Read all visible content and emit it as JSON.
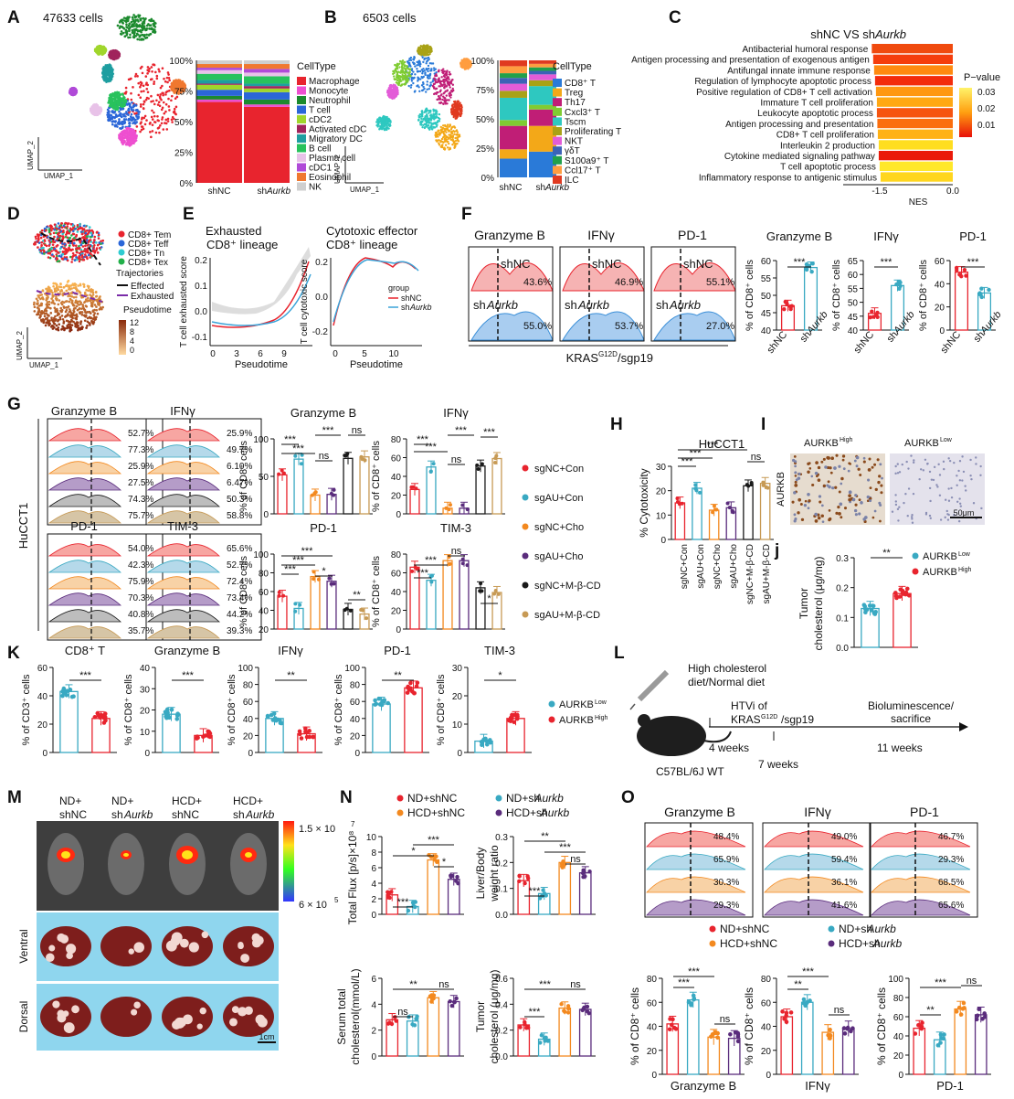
{
  "panels": {
    "A": {
      "letter": "A",
      "cells": "47633 cells",
      "axis_x": "UMAP_1",
      "axis_y": "UMAP_2",
      "ticks": [
        "100%",
        "75%",
        "50%",
        "25%",
        "0%"
      ],
      "x_labels": [
        "shNC",
        "shAurkb"
      ],
      "legend_title": "CellType",
      "legend": [
        "Macrophage",
        "Monocyte",
        "Neutrophil",
        "T cell",
        "cDC2",
        "Activated cDC",
        "Migratory DC",
        "B cell",
        "Plasma cell",
        "cDC1",
        "Eosinophil",
        "NK"
      ],
      "colors": [
        "#e8242e",
        "#ee4fd0",
        "#1c8a2e",
        "#2b66d8",
        "#a0d62c",
        "#a0245c",
        "#1e9ea0",
        "#28c25c",
        "#e8c2e8",
        "#b04ad8",
        "#f07830",
        "#cfcfcf"
      ],
      "shNC": [
        66,
        2,
        3,
        5,
        4,
        1,
        3,
        5,
        3,
        2,
        3,
        3
      ],
      "shAurkb": [
        62,
        2,
        4,
        6,
        3,
        2,
        2,
        6,
        3,
        3,
        4,
        3
      ]
    },
    "B": {
      "letter": "B",
      "cells": "6503 cells",
      "axis_x": "UMAP_1",
      "axis_y": "UMAP_2",
      "ticks": [
        "100%",
        "75%",
        "50%",
        "25%",
        "0%"
      ],
      "x_labels": [
        "shNC",
        "shAurkb"
      ],
      "legend_title": "CellType",
      "legend": [
        "CD8⁺ T",
        "Treg",
        "Th17",
        "Cxcl3⁺ T",
        "Tscm",
        "Proliferating T",
        "NKT",
        "γδT",
        "S100a9⁺ T",
        "Ccl17⁺ T",
        "ILC"
      ],
      "colors": [
        "#2a7ad8",
        "#f3a818",
        "#c01e76",
        "#7fcc32",
        "#2ec8c0",
        "#a9a216",
        "#e35cd8",
        "#3c62b6",
        "#22a04a",
        "#ff9d40",
        "#e03a20"
      ],
      "shNC": [
        16,
        8,
        20,
        5,
        19,
        6,
        6,
        5,
        4,
        6,
        5
      ],
      "shAurkb": [
        22,
        22,
        14,
        4,
        16,
        5,
        5,
        3,
        3,
        3,
        3
      ]
    },
    "C": {
      "letter": "C",
      "title": "shNC VS shAurkb",
      "xlabel": "NES",
      "ticks": [
        "-1.5",
        "0.0"
      ],
      "legend_title": "P−value",
      "legend_ticks": [
        "0.03",
        "0.02",
        "0.01"
      ],
      "pathways": [
        "Antibacterial humoral response",
        "Antigen processing and presentation of exogenous antigen",
        "Antifungal innate immune response",
        "Regulation of lymphocyte apoptotic process",
        "Positive regulation of CD8+ T cell activation",
        "Immature T cell proliferation",
        "Leukocyte apoptotic process",
        "Antigen processing and presentation",
        "CD8+ T cell proliferation",
        "Interleukin 2 production",
        "Cytokine mediated signaling pathway",
        "T cell apoptotic process",
        "Inflammatory response to antigenic stimulus"
      ],
      "nes": [
        -1.75,
        -1.72,
        -1.7,
        -1.68,
        -1.66,
        -1.64,
        -1.64,
        -1.63,
        -1.62,
        -1.6,
        -1.6,
        -1.58,
        -1.56
      ],
      "colors": [
        "#f04a0e",
        "#f53d0c",
        "#ff8a10",
        "#f32c0c",
        "#ff9812",
        "#ffa814",
        "#f65410",
        "#fb6e0e",
        "#ffb216",
        "#ffde20",
        "#ea1a0a",
        "#ffe82a",
        "#ffd61e"
      ]
    },
    "D": {
      "letter": "D",
      "legend": [
        "CD8+ Tem",
        "CD8+ Teff",
        "CD8+ Tn",
        "CD8+ Tex"
      ],
      "legend_colors": [
        "#e8242e",
        "#2a66d8",
        "#2ecbd0",
        "#22b04a"
      ],
      "traj_title": "Trajectories",
      "traj": [
        "Effected",
        "Exhausted"
      ],
      "pseudotime": "Pseudotime",
      "pt_ticks": [
        "12",
        "8",
        "4",
        "0"
      ],
      "axis_x": "UMAP_1",
      "axis_y": "UMAP_2"
    },
    "E": {
      "letter": "E",
      "title1": "Exhausted",
      "title1b": "CD8⁺ lineage",
      "title2": "Cytotoxic effector",
      "title2b": "CD8⁺ lineage",
      "ylabel1": "T cell exhausted score",
      "ylabel2": "T cell cytotoxic score",
      "xlabel": "Pseudotime",
      "xticks1": [
        "0",
        "3",
        "6",
        "9"
      ],
      "yticks1": [
        "0.2",
        "0.1",
        "0.0",
        "-0.1"
      ],
      "xticks2": [
        "0",
        "5",
        "10"
      ],
      "yticks2": [
        "0.2",
        "0.0",
        "-0.2"
      ],
      "group": "group",
      "groups": [
        "shNC",
        "shAurkb"
      ]
    },
    "F": {
      "letter": "F",
      "markers": [
        "Granzyme B",
        "IFNγ",
        "PD-1"
      ],
      "shNC": [
        "43.6%",
        "46.9%",
        "55.1%"
      ],
      "shAurkb": [
        "55.0%",
        "53.7%",
        "27.0%"
      ],
      "labels": [
        "shNC",
        "shAurkb"
      ],
      "xlabel": "KRASG12D/sgp19",
      "bars": [
        {
          "title": "Granzyme B",
          "ylabel": "% of CD8⁺ cells",
          "yticks": [
            "60",
            "55",
            "50",
            "45",
            "40"
          ],
          "values": [
            47,
            58
          ],
          "sig": "***"
        },
        {
          "title": "IFNγ",
          "ylabel": "% of CD8⁺ cells",
          "yticks": [
            "65",
            "60",
            "55",
            "50",
            "45",
            "40"
          ],
          "values": [
            46,
            56
          ],
          "sig": "***"
        },
        {
          "title": "PD-1",
          "ylabel": "% of CD8⁺ cells",
          "yticks": [
            "60",
            "40",
            "20",
            "0"
          ],
          "values": [
            50,
            32
          ],
          "sig": "***"
        }
      ]
    },
    "G": {
      "letter": "G",
      "cell_line": "HuCCT1",
      "hist_titles": [
        "Granzyme B",
        "IFNγ",
        "PD-1",
        "TIM-3"
      ],
      "pcts_top": [
        [
          "52.7%",
          "77.3%",
          "25.9%",
          "27.5%",
          "74.3%",
          "75.7%"
        ],
        [
          "25.9%",
          "49.7%",
          "6.10%",
          "6.47%",
          "50.3%",
          "58.8%"
        ]
      ],
      "pcts_bot": [
        [
          "54.0%",
          "42.3%",
          "75.9%",
          "70.3%",
          "40.8%",
          "35.7%"
        ],
        [
          "65.6%",
          "52.7%",
          "72.4%",
          "73.4%",
          "44.2%",
          "39.3%"
        ]
      ],
      "groups": [
        "sgNC+Con",
        "sgAU+Con",
        "sgNC+Cho",
        "sgAU+Cho",
        "sgNC+M-β-CD",
        "sgAU+M-β-CD"
      ],
      "group_colors": [
        "#e8242e",
        "#39a9c2",
        "#f3891f",
        "#5a2c7c",
        "#1a1a1a",
        "#c79a55"
      ],
      "bars": [
        {
          "title": "Granzyme B",
          "ylabel": "% of CD8⁺ cells",
          "ymax": 100,
          "yticks": [
            "100",
            "50",
            "0"
          ],
          "values": [
            52,
            73,
            25,
            26,
            74,
            76
          ]
        },
        {
          "title": "IFNγ",
          "ylabel": "% of CD8⁺ cells",
          "ymax": 80,
          "yticks": [
            "80",
            "60",
            "40",
            "20",
            "0"
          ],
          "values": [
            26,
            50,
            6,
            6,
            51,
            59
          ]
        },
        {
          "title": "PD-1",
          "ylabel": "% of CD8⁺ cells",
          "ymax": 100,
          "yticks": [
            "100",
            "80",
            "60",
            "40",
            "20"
          ],
          "values": [
            55,
            42,
            76,
            71,
            41,
            36
          ]
        },
        {
          "title": "TIM-3",
          "ylabel": "% of CD8⁺ cells",
          "ymax": 80,
          "yticks": [
            "80",
            "60",
            "40",
            "20",
            "0"
          ],
          "values": [
            66,
            52,
            73,
            73,
            44,
            39
          ]
        }
      ],
      "sig": [
        "***",
        "ns",
        "*",
        "**"
      ]
    },
    "H": {
      "letter": "H",
      "title": "HuCCT1",
      "ylabel": "% Cytotoxicity",
      "yticks": [
        "30",
        "20",
        "10",
        "0"
      ],
      "values": [
        15,
        21,
        12,
        13,
        22,
        23
      ],
      "sig": [
        "***",
        "***",
        "***",
        "ns"
      ]
    },
    "I": {
      "letter": "I",
      "title_high": "AURKBHigh",
      "title_low": "AURKBLow",
      "side": "AURKB",
      "scale": "50μm"
    },
    "J": {
      "letter": "j",
      "ylabel": "Tumor cholesterol (μg/mg)",
      "yticks": [
        "0.3",
        "0.2",
        "0.1",
        "0.0"
      ],
      "values": [
        0.13,
        0.18
      ],
      "sig": "**",
      "legend": [
        "AURKBLow",
        "AURKBHigh"
      ]
    },
    "K": {
      "letter": "K",
      "panels": [
        {
          "title": "CD8⁺ T",
          "ylabel": "% of CD3⁺ cells",
          "yticks": [
            "60",
            "40",
            "20",
            "0"
          ],
          "values": [
            43,
            24
          ],
          "sig": "***"
        },
        {
          "title": "Granzyme B",
          "ylabel": "% of CD8⁺ cells",
          "yticks": [
            "40",
            "30",
            "20",
            "10",
            "0"
          ],
          "values": [
            18,
            8
          ],
          "sig": "***"
        },
        {
          "title": "IFNγ",
          "ylabel": "% of CD8⁺ cells",
          "yticks": [
            "100",
            "80",
            "60",
            "40",
            "20",
            "0"
          ],
          "values": [
            40,
            22
          ],
          "sig": "**"
        },
        {
          "title": "PD-1",
          "ylabel": "% of CD8⁺ cells",
          "yticks": [
            "100",
            "80",
            "60",
            "40",
            "20",
            "0"
          ],
          "values": [
            57,
            76
          ],
          "sig": "**"
        },
        {
          "title": "TIM-3",
          "ylabel": "% of CD8⁺ cells",
          "yticks": [
            "30",
            "20",
            "10",
            "0"
          ],
          "values": [
            4,
            12
          ],
          "sig": "*"
        }
      ],
      "legend": [
        "AURKBLow",
        "AURKBHigh"
      ]
    },
    "L": {
      "letter": "L",
      "diet": "High cholesterol diet/Normal diet",
      "htvi": "HTVi of",
      "krase": "KRASG12D/sgp19",
      "end": "Bioluminescence/ sacrifice",
      "weeks": [
        "4 weeks",
        "7 weeks",
        "11 weeks"
      ],
      "mouse": "C57BL/6J WT"
    },
    "M": {
      "letter": "M",
      "groups": [
        "ND+ shNC",
        "ND+ shAurkb",
        "HCD+ shNC",
        "HCD+ shAurkb"
      ],
      "scale_max": "1.5 × 10",
      "scale_max_exp": "7",
      "scale_min": "6 × 10",
      "scale_min_exp": "5",
      "views": [
        "Ventral",
        "Dorsal"
      ],
      "bar": "1cm"
    },
    "N": {
      "letter": "N",
      "legend": [
        "ND+shNC",
        "ND+shAurkb",
        "HCD+shNC",
        "HCD+shAurkb"
      ],
      "colors": [
        "#e8242e",
        "#39a9c2",
        "#f3891f",
        "#5a2c7c"
      ],
      "bars": [
        {
          "ylabel": "Total Flux [p/s]×10⁸",
          "yticks": [
            "10",
            "8",
            "6",
            "4",
            "2",
            "0"
          ],
          "ymax": 10,
          "values": [
            2.5,
            1.0,
            7.0,
            4.5
          ],
          "sig": [
            "*",
            "***",
            "*",
            "***"
          ]
        },
        {
          "ylabel": "Liver/Body weight ratio",
          "yticks": [
            "0.3",
            "0.2",
            "0.1",
            "0.0"
          ],
          "ymax": 0.3,
          "values": [
            0.13,
            0.08,
            0.2,
            0.16
          ],
          "sig": [
            "**",
            "***",
            "ns",
            "***"
          ]
        },
        {
          "ylabel": "Serum total cholesterol(mmol/L)",
          "yticks": [
            "6",
            "4",
            "2",
            "0"
          ],
          "ymax": 6,
          "values": [
            2.8,
            2.7,
            4.5,
            4.2
          ],
          "sig": [
            "**",
            "ns",
            "ns"
          ]
        },
        {
          "ylabel": "Tumor cholesterol (μg/mg)",
          "yticks": [
            "0.6",
            "0.4",
            "0.2",
            "0.0"
          ],
          "ymax": 0.6,
          "values": [
            0.24,
            0.13,
            0.37,
            0.36
          ],
          "sig": [
            "***",
            "***",
            "ns"
          ]
        }
      ]
    },
    "O": {
      "letter": "O",
      "markers": [
        "Granzyme B",
        "IFNγ",
        "PD-1"
      ],
      "pcts": [
        [
          "48.4%",
          "65.9%",
          "30.3%",
          "29.3%"
        ],
        [
          "49.0%",
          "59.4%",
          "36.1%",
          "41.6%"
        ],
        [
          "46.7%",
          "29.3%",
          "68.5%",
          "65.6%"
        ]
      ],
      "legend": [
        "ND+shNC",
        "ND+shAurkb",
        "HCD+shNC",
        "HCD+shAurkb"
      ],
      "bars": [
        {
          "title": "Granzyme B",
          "ylabel": "% of CD8⁺ cells",
          "yticks": [
            "80",
            "60",
            "40",
            "20",
            "0"
          ],
          "ymax": 80,
          "values": [
            42,
            62,
            31,
            30
          ],
          "sig": [
            "***",
            "***",
            "ns"
          ]
        },
        {
          "title": "IFNγ",
          "ylabel": "% of CD8⁺ cells",
          "yticks": [
            "80",
            "60",
            "40",
            "20",
            "0"
          ],
          "ymax": 80,
          "values": [
            48,
            60,
            35,
            38
          ],
          "sig": [
            "***",
            "**",
            "ns"
          ]
        },
        {
          "title": "PD-1",
          "ylabel": "% of CD8⁺ cells",
          "yticks": [
            "100",
            "80",
            "60",
            "40",
            "20",
            "0"
          ],
          "ymax": 100,
          "values": [
            48,
            36,
            68,
            62
          ],
          "sig": [
            "***",
            "**",
            "ns"
          ]
        }
      ]
    }
  }
}
